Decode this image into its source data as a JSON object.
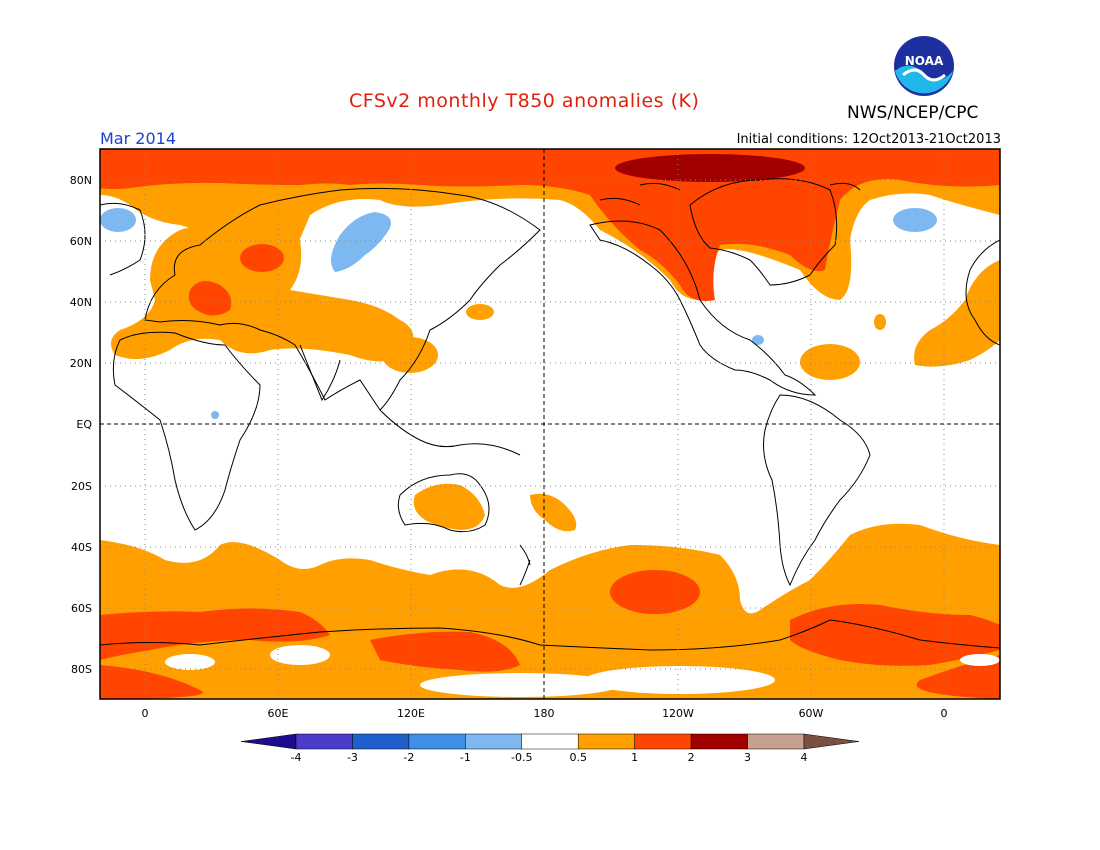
{
  "title": "CFSv2 monthly T850 anomalies (K)",
  "agency": "NWS/NCEP/CPC",
  "logo_text": "NOAA",
  "period": "Mar 2014",
  "initial_conditions": "Initial conditions: 12Oct2013-21Oct2013",
  "lat_labels": [
    "80N",
    "60N",
    "40N",
    "20N",
    "EQ",
    "20S",
    "40S",
    "60S",
    "80S"
  ],
  "lon_labels": [
    "0",
    "60E",
    "120E",
    "180",
    "120W",
    "60W",
    "0"
  ],
  "colorbar": {
    "labels": [
      "-4",
      "-3",
      "-2",
      "-1",
      "-0.5",
      "0.5",
      "1",
      "2",
      "3",
      "4"
    ],
    "colors": [
      "#1c0e8a",
      "#4a3cc8",
      "#1f60cc",
      "#3f8ee8",
      "#7db8f0",
      "#ffffff",
      "#ffa000",
      "#ff4500",
      "#a00000",
      "#c8a090",
      "#7a5040"
    ]
  },
  "colors": {
    "warm_1": "#ffa000",
    "warm_2": "#ff4500",
    "warm_3": "#a00000",
    "cool_1": "#7db8f0",
    "title": "#e0200f",
    "period": "#1a40d8"
  }
}
